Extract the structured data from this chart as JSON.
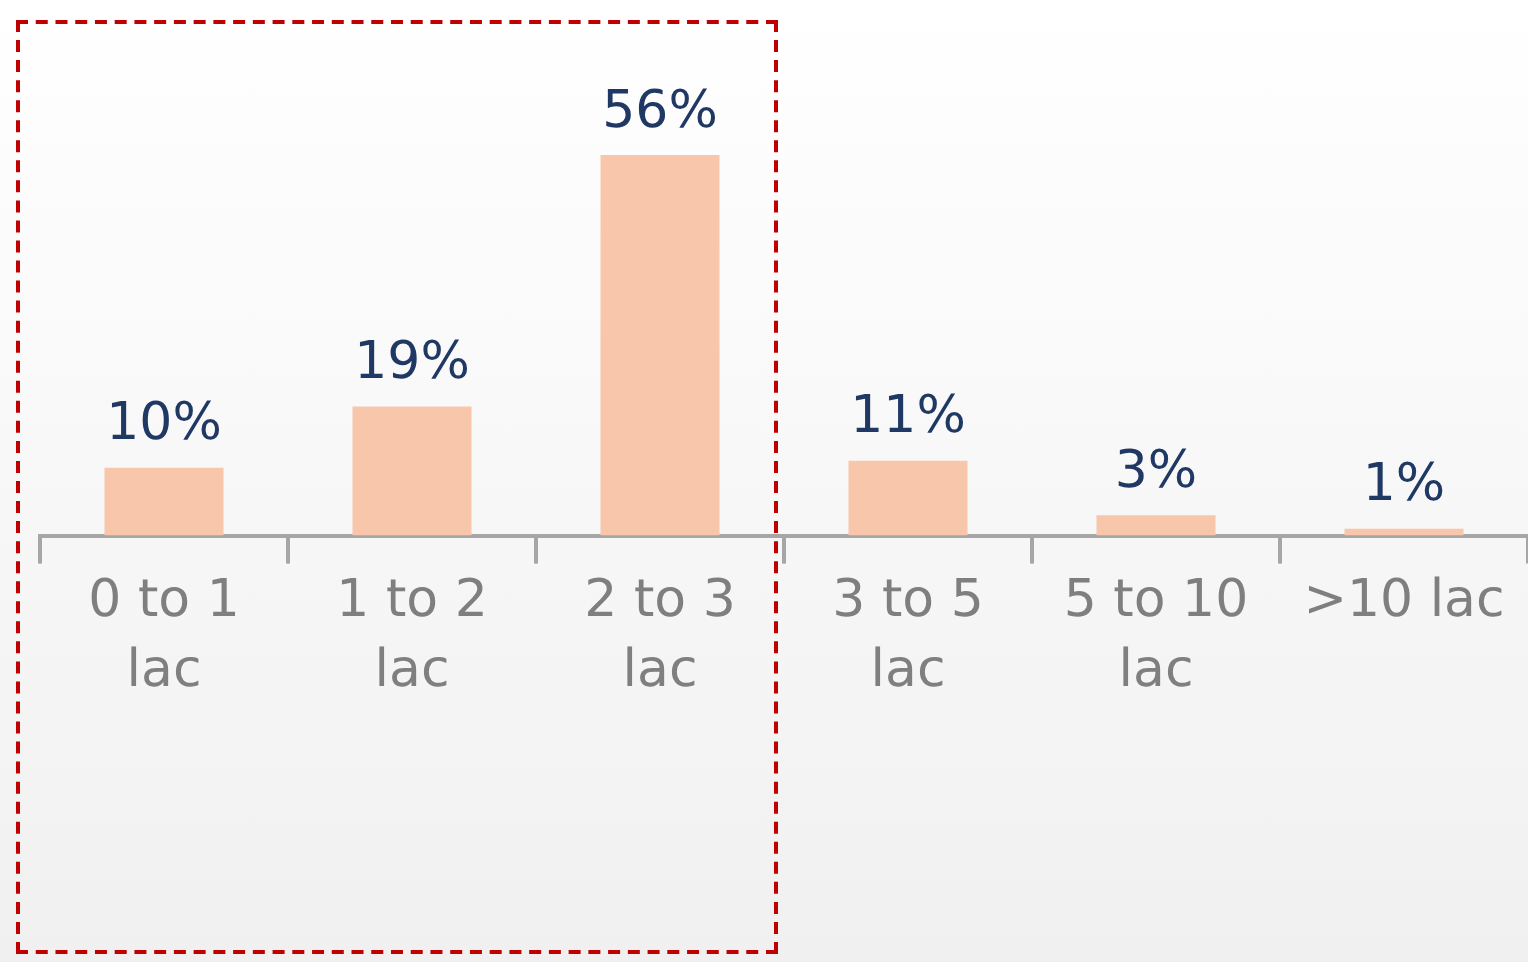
{
  "chart_data": {
    "type": "bar",
    "categories": [
      "0 to 1 lac",
      "1 to 2 lac",
      "2 to 3 lac",
      "3 to 5 lac",
      "5 to 10 lac",
      ">10 lac"
    ],
    "values": [
      10,
      19,
      56,
      11,
      3,
      1
    ],
    "value_labels": [
      "10%",
      "19%",
      "56%",
      "11%",
      "3%",
      "1%"
    ],
    "color": "#f8c7ab"
  }
}
